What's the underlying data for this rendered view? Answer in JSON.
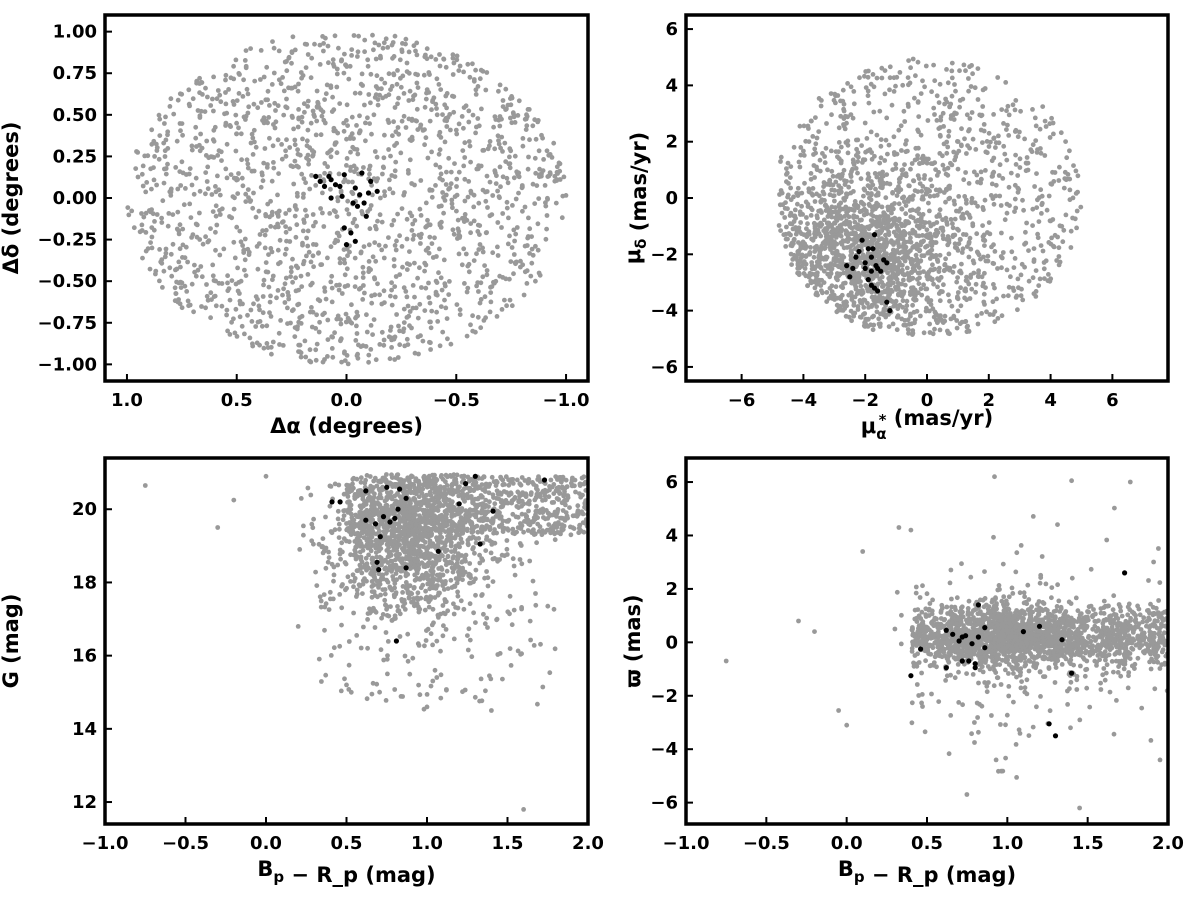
{
  "chart_data": [
    {
      "type": "scatter",
      "xlabel": "Δα (degrees)",
      "ylabel": "Δδ (degrees)",
      "xlim": [
        1.1,
        -1.1
      ],
      "ylim": [
        -1.1,
        1.1
      ],
      "x_reversed": true,
      "xticks": [
        1.0,
        0.5,
        0.0,
        -0.5,
        -1.0
      ],
      "xtick_labels": [
        "1.0",
        "0.5",
        "0.0",
        "−0.5",
        "−1.0"
      ],
      "yticks": [
        -1.0,
        -0.75,
        -0.5,
        -0.25,
        0.0,
        0.25,
        0.5,
        0.75,
        1.0
      ],
      "ytick_labels": [
        "−1.00",
        "−0.75",
        "−0.50",
        "−0.25",
        "0.00",
        "0.25",
        "0.50",
        "0.75",
        "1.00"
      ],
      "grid": false,
      "series": [
        {
          "color": "#999999",
          "distribution": {
            "kind": "disk",
            "cx": 0.0,
            "cy": 0.0,
            "rx": 1.0,
            "ry": 1.0,
            "n": 1700
          }
        },
        {
          "color": "#000000",
          "points": [
            [
              0.12,
              0.1
            ],
            [
              0.08,
              0.13
            ],
            [
              0.1,
              0.07
            ],
            [
              0.05,
              0.08
            ],
            [
              0.03,
              0.07
            ],
            [
              0.07,
              0.0
            ],
            [
              -0.04,
              0.06
            ],
            [
              -0.06,
              0.02
            ],
            [
              -0.03,
              -0.03
            ],
            [
              -0.05,
              -0.05
            ],
            [
              0.01,
              -0.18
            ],
            [
              -0.02,
              -0.21
            ],
            [
              -0.04,
              -0.26
            ],
            [
              0.0,
              -0.28
            ],
            [
              -0.08,
              -0.03
            ],
            [
              -0.09,
              -0.11
            ],
            [
              -0.1,
              0.03
            ],
            [
              -0.14,
              0.04
            ],
            [
              0.14,
              0.13
            ],
            [
              0.01,
              0.14
            ],
            [
              -0.07,
              0.15
            ],
            [
              0.07,
              0.11
            ],
            [
              0.02,
              0.01
            ],
            [
              -0.11,
              0.1
            ]
          ]
        }
      ]
    },
    {
      "type": "scatter",
      "xlabel": "μ_α* (mas/yr)",
      "ylabel": "μ_δ (mas/yr)",
      "xlim": [
        -7.8,
        7.8
      ],
      "ylim": [
        -6.5,
        6.5
      ],
      "xticks": [
        -6,
        -4,
        -2,
        0,
        2,
        4,
        6
      ],
      "xtick_labels": [
        "−6",
        "−4",
        "−2",
        "0",
        "2",
        "4",
        "6"
      ],
      "yticks": [
        -6,
        -4,
        -2,
        0,
        2,
        4,
        6
      ],
      "ytick_labels": [
        "−6",
        "−4",
        "−2",
        "0",
        "2",
        "4",
        "6"
      ],
      "grid": false,
      "series": [
        {
          "color": "#999999",
          "distribution": {
            "kind": "clipped-disk",
            "cx": 0.0,
            "cy": 0.0,
            "r": 5.0,
            "dense_cx": -1.8,
            "dense_cy": -2.0,
            "n": 2200
          }
        },
        {
          "color": "#000000",
          "points": [
            [
              -1.9,
              -1.8
            ],
            [
              -1.8,
              -2.1
            ],
            [
              -1.7,
              -1.3
            ],
            [
              -2.0,
              -2.3
            ],
            [
              -1.6,
              -2.5
            ],
            [
              -1.8,
              -2.6
            ],
            [
              -2.3,
              -2.1
            ],
            [
              -2.4,
              -2.5
            ],
            [
              -2.5,
              -2.8
            ],
            [
              -2.1,
              -1.5
            ],
            [
              -1.4,
              -2.2
            ],
            [
              -1.3,
              -2.3
            ],
            [
              -1.8,
              -3.1
            ],
            [
              -1.7,
              -3.2
            ],
            [
              -1.6,
              -3.3
            ],
            [
              -1.3,
              -3.7
            ],
            [
              -1.2,
              -4.0
            ],
            [
              -2.0,
              -2.5
            ],
            [
              -1.9,
              -2.9
            ],
            [
              -2.2,
              -1.9
            ],
            [
              -1.5,
              -2.6
            ],
            [
              -1.65,
              -2.4
            ],
            [
              -2.6,
              -2.4
            ],
            [
              -1.75,
              -1.8
            ]
          ]
        }
      ]
    },
    {
      "type": "scatter",
      "xlabel": "B_p − R_p (mag)",
      "ylabel": "G (mag)",
      "xlim": [
        -1.0,
        2.0
      ],
      "ylim": [
        11.4,
        21.4
      ],
      "xticks": [
        -1.0,
        -0.5,
        0.0,
        0.5,
        1.0,
        1.5,
        2.0
      ],
      "xtick_labels": [
        "−1.0",
        "−0.5",
        "0.0",
        "0.5",
        "1.0",
        "1.5",
        "2.0"
      ],
      "yticks": [
        12,
        14,
        16,
        18,
        20
      ],
      "ytick_labels": [
        "12",
        "14",
        "16",
        "18",
        "20"
      ],
      "grid": false,
      "series": [
        {
          "color": "#999999",
          "distribution": {
            "kind": "cmd",
            "n": 2300
          }
        },
        {
          "color": "#000000",
          "points": [
            [
              0.41,
              20.2
            ],
            [
              0.46,
              20.2
            ],
            [
              0.62,
              20.5
            ],
            [
              0.75,
              20.6
            ],
            [
              0.83,
              20.55
            ],
            [
              1.24,
              20.7
            ],
            [
              1.3,
              20.9
            ],
            [
              1.73,
              20.8
            ],
            [
              0.62,
              19.7
            ],
            [
              0.68,
              19.6
            ],
            [
              0.73,
              19.8
            ],
            [
              0.77,
              19.65
            ],
            [
              0.8,
              19.75
            ],
            [
              0.82,
              20.0
            ],
            [
              0.87,
              20.3
            ],
            [
              1.2,
              20.15
            ],
            [
              1.41,
              19.95
            ],
            [
              0.71,
              19.25
            ],
            [
              1.33,
              19.05
            ],
            [
              1.07,
              18.85
            ],
            [
              0.69,
              18.55
            ],
            [
              0.7,
              18.35
            ],
            [
              0.87,
              18.4
            ],
            [
              0.81,
              16.4
            ]
          ]
        }
      ]
    },
    {
      "type": "scatter",
      "xlabel": "B_p − R_p (mag)",
      "ylabel": "ϖ (mas)",
      "xlim": [
        -1.0,
        2.0
      ],
      "ylim": [
        -6.8,
        6.9
      ],
      "xticks": [
        -1.0,
        -0.5,
        0.0,
        0.5,
        1.0,
        1.5,
        2.0
      ],
      "xtick_labels": [
        "−1.0",
        "−0.5",
        "0.0",
        "0.5",
        "1.0",
        "1.5",
        "2.0"
      ],
      "yticks": [
        -6,
        -4,
        -2,
        0,
        2,
        4,
        6
      ],
      "ytick_labels": [
        "−6",
        "−4",
        "−2",
        "0",
        "2",
        "4",
        "6"
      ],
      "grid": false,
      "series": [
        {
          "color": "#999999",
          "distribution": {
            "kind": "band",
            "n": 2100
          }
        },
        {
          "color": "#000000",
          "points": [
            [
              0.4,
              -1.25
            ],
            [
              0.46,
              -0.25
            ],
            [
              0.62,
              0.45
            ],
            [
              0.62,
              -0.95
            ],
            [
              0.66,
              0.3
            ],
            [
              0.7,
              0.05
            ],
            [
              0.72,
              0.2
            ],
            [
              0.74,
              0.25
            ],
            [
              0.76,
              -0.7
            ],
            [
              0.78,
              -0.05
            ],
            [
              0.8,
              -0.95
            ],
            [
              0.8,
              -0.8
            ],
            [
              0.82,
              0.2
            ],
            [
              0.82,
              1.4
            ],
            [
              0.86,
              0.55
            ],
            [
              0.86,
              -0.2
            ],
            [
              1.1,
              0.4
            ],
            [
              1.2,
              0.6
            ],
            [
              1.26,
              -3.05
            ],
            [
              1.3,
              -3.5
            ],
            [
              1.34,
              0.1
            ],
            [
              1.4,
              -1.15
            ],
            [
              1.73,
              2.6
            ],
            [
              0.72,
              -0.7
            ]
          ]
        }
      ]
    }
  ]
}
